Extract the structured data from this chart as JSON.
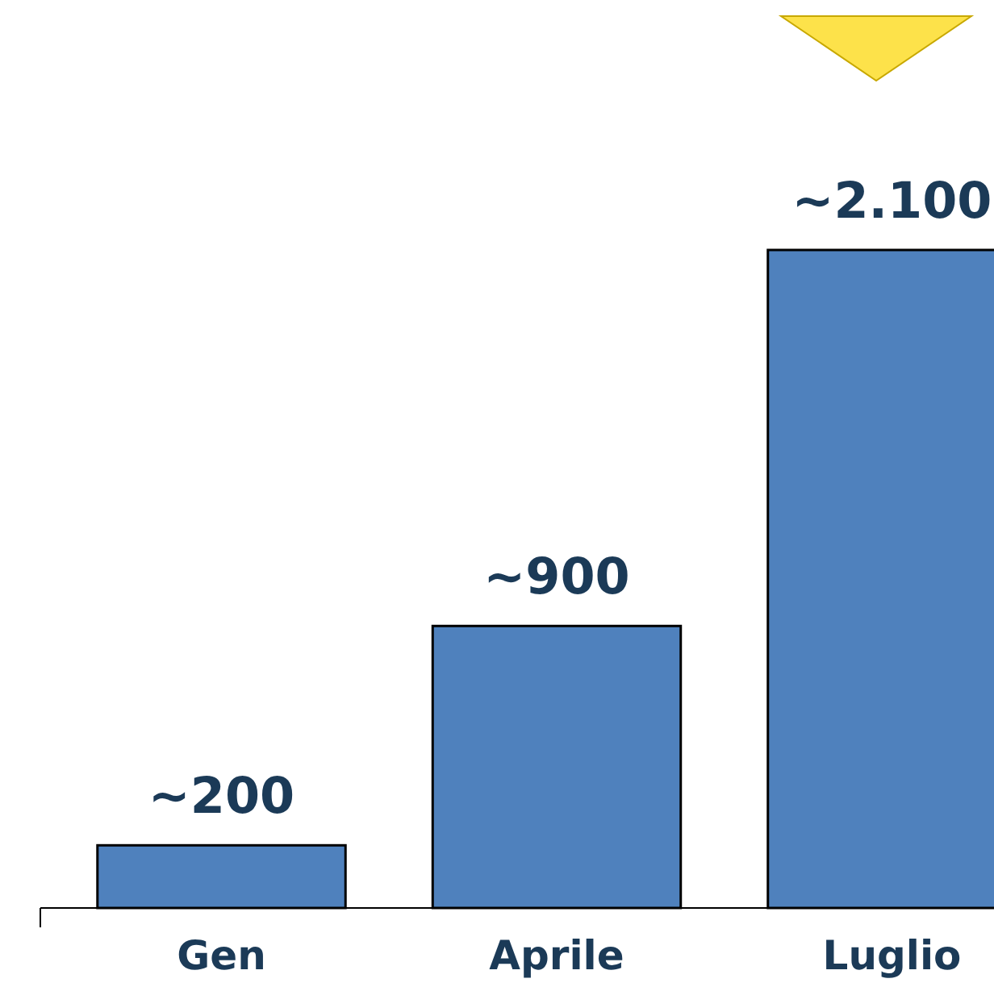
{
  "chart_data": {
    "type": "bar",
    "categories": [
      "Gen",
      "Aprile",
      "Luglio"
    ],
    "values": [
      200,
      900,
      2100
    ],
    "color": "#4f81bd",
    "value_labels": [
      "~200",
      "~900",
      "~2.100"
    ]
  }
}
